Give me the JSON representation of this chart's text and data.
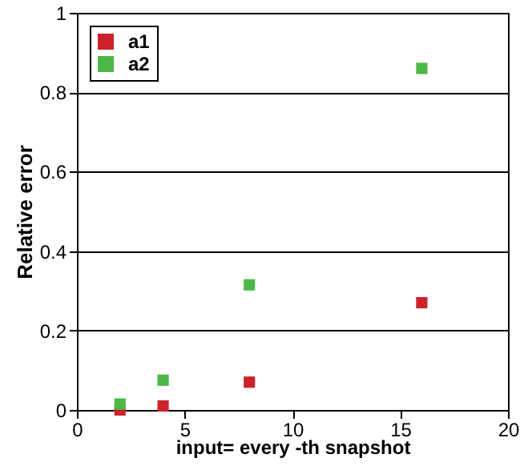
{
  "chart_data": {
    "type": "scatter",
    "xlabel": "input= every -th snapshot",
    "ylabel": "Relative error",
    "x": [
      2,
      4,
      8,
      16
    ],
    "series": [
      {
        "name": "a1",
        "color": "#cc2229",
        "values": [
          0.0,
          0.01,
          0.07,
          0.27
        ]
      },
      {
        "name": "a2",
        "color": "#4db848",
        "values": [
          0.015,
          0.075,
          0.315,
          0.86
        ]
      }
    ],
    "xlim": [
      0,
      20
    ],
    "xticks": [
      0,
      5,
      10,
      15,
      20
    ],
    "ylim": [
      0,
      1
    ],
    "yticks": [
      0,
      0.2,
      0.4,
      0.6,
      0.8,
      1
    ],
    "grid": "y",
    "legend": "top left",
    "marker": "square"
  }
}
